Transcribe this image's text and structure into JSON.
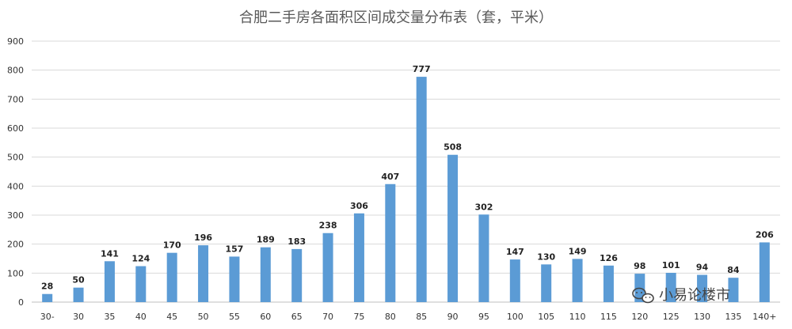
{
  "chart_data": {
    "type": "bar",
    "title": "合肥二手房各面积区间成交量分布表（套，平米）",
    "categories": [
      "30-",
      "30",
      "35",
      "40",
      "45",
      "50",
      "55",
      "60",
      "65",
      "70",
      "75",
      "80",
      "85",
      "90",
      "95",
      "100",
      "105",
      "110",
      "115",
      "120",
      "125",
      "130",
      "135",
      "140+"
    ],
    "values": [
      28,
      50,
      141,
      124,
      170,
      196,
      157,
      189,
      183,
      238,
      306,
      407,
      777,
      508,
      302,
      147,
      130,
      149,
      126,
      98,
      101,
      94,
      84,
      206
    ],
    "ylim": [
      0,
      900
    ],
    "yticks": [
      0,
      100,
      200,
      300,
      400,
      500,
      600,
      700,
      800,
      900
    ],
    "grid": true,
    "bar_color": "#5B9BD5"
  },
  "watermark": {
    "text": "小易论楼市"
  }
}
